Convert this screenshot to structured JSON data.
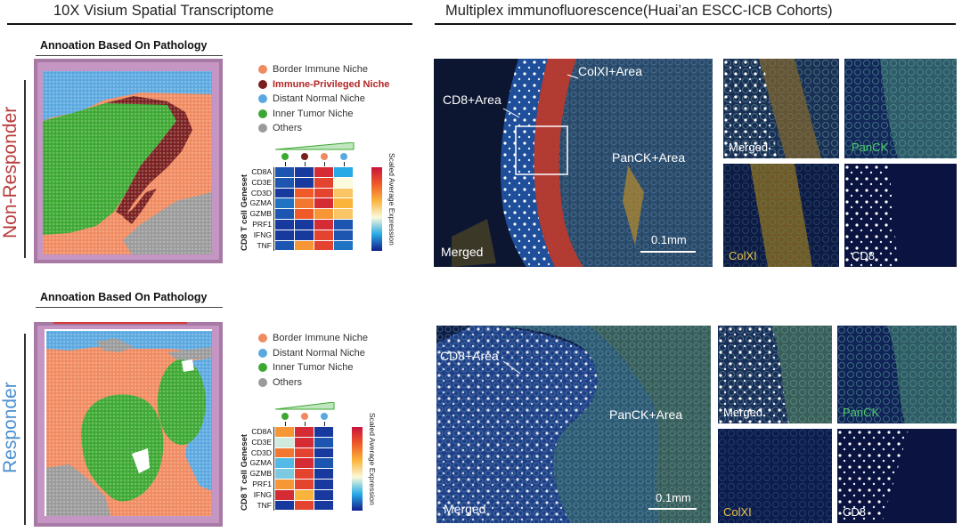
{
  "left_title": "10X Visium Spatial Transcriptome",
  "right_title": "Multiplex immunofluorescence(Huai’an ESCC-ICB Cohorts)",
  "rows": {
    "non_responder": {
      "label": "Non-Responder",
      "label_color": "#b83a3a",
      "annotation_title": "Annoation Based On Pathology",
      "legend": [
        {
          "label": "Border Immune Niche",
          "color": "#f08a60"
        },
        {
          "label": "Immune-Privileged Niche",
          "color": "#7a1f1f",
          "highlight": true
        },
        {
          "label": "Distant Normal Niche",
          "color": "#5aa8e0"
        },
        {
          "label": "Inner Tumor Niche",
          "color": "#3ca832"
        },
        {
          "label": "Others",
          "color": "#9a9a9a"
        }
      ],
      "heatmap": {
        "geneset_label": "CD8 T cell Geneset",
        "genes": [
          "CD8A",
          "CD3E",
          "CD3D",
          "GZMA",
          "GZMB",
          "PRF1",
          "IFNG",
          "TNF"
        ],
        "column_colors": [
          "#3ca832",
          "#7a1f1f",
          "#f08a60",
          "#5aa8e0"
        ],
        "values": [
          [
            0.1,
            0.05,
            0.95,
            0.25
          ],
          [
            0.1,
            0.05,
            0.9,
            0.5
          ],
          [
            0.05,
            0.85,
            0.9,
            0.65
          ],
          [
            0.15,
            0.8,
            0.95,
            0.7
          ],
          [
            0.1,
            0.85,
            0.75,
            0.65
          ],
          [
            0.05,
            0.05,
            0.95,
            0.1
          ],
          [
            0.05,
            0.05,
            0.9,
            0.1
          ],
          [
            0.1,
            0.75,
            0.9,
            0.15
          ]
        ],
        "colorbar_label": "Scaled Average Expression"
      },
      "mif": {
        "main_labels": {
          "cd8": "CD8+Area",
          "colxi": "ColXI+Area",
          "panck": "PanCK+Area",
          "merged": "Merged"
        },
        "scale": "0.1mm",
        "tiles": [
          {
            "label": "Merged",
            "color": "#ffffff"
          },
          {
            "label": "PanCK",
            "color": "#4fce6a"
          },
          {
            "label": "ColXI",
            "color": "#e8c24a"
          },
          {
            "label": "CD8",
            "color": "#ffffff"
          }
        ]
      }
    },
    "responder": {
      "label": "Responder",
      "label_color": "#4a8fd0",
      "annotation_title": "Annoation Based On Pathology",
      "legend": [
        {
          "label": "Border Immune Niche",
          "color": "#f08a60"
        },
        {
          "label": "Distant Normal Niche",
          "color": "#5aa8e0"
        },
        {
          "label": "Inner Tumor Niche",
          "color": "#3ca832"
        },
        {
          "label": "Others",
          "color": "#9a9a9a"
        }
      ],
      "heatmap": {
        "geneset_label": "CD8 T cell Geneset",
        "genes": [
          "CD8A",
          "CD3E",
          "CD3D",
          "GZMA",
          "GZMB",
          "PRF1",
          "IFNG",
          "TNF"
        ],
        "column_colors": [
          "#3ca832",
          "#f08a60",
          "#5aa8e0"
        ],
        "values": [
          [
            0.75,
            0.95,
            0.05
          ],
          [
            0.45,
            0.95,
            0.1
          ],
          [
            0.8,
            0.9,
            0.05
          ],
          [
            0.3,
            0.95,
            0.1
          ],
          [
            0.35,
            0.9,
            0.05
          ],
          [
            0.75,
            0.9,
            0.05
          ],
          [
            0.95,
            0.7,
            0.05
          ],
          [
            0.05,
            0.9,
            0.05
          ]
        ],
        "colorbar_label": "Scaled Average Expression"
      },
      "mif": {
        "main_labels": {
          "cd8": "CD8+Area",
          "panck": "PanCK+Area",
          "merged": "Merged"
        },
        "scale": "0.1mm",
        "tiles": [
          {
            "label": "Merged",
            "color": "#ffffff"
          },
          {
            "label": "PanCK",
            "color": "#4fce6a"
          },
          {
            "label": "ColXI",
            "color": "#e8c24a"
          },
          {
            "label": "CD8",
            "color": "#ffffff"
          }
        ]
      }
    }
  }
}
